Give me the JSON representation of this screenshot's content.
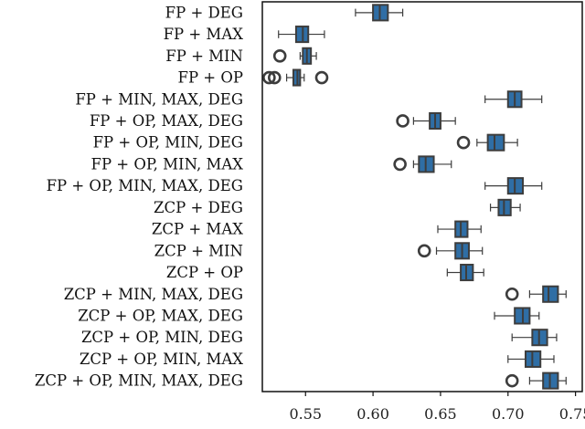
{
  "chart_data": {
    "type": "boxplot",
    "orientation": "horizontal",
    "title": "",
    "xlabel": "",
    "ylabel": "",
    "xlim": [
      0.518,
      0.755
    ],
    "xticks": [
      0.55,
      0.6,
      0.65,
      0.7,
      0.75
    ],
    "xtick_labels": [
      "0.55",
      "0.60",
      "0.65",
      "0.70",
      "0.75"
    ],
    "grid": false,
    "legend": "none",
    "box_color": "#2f6ea5",
    "edge_color": "#3d3d3d",
    "categories": [
      {
        "label": "FP + DEG",
        "whisker_low": 0.587,
        "q1": 0.6,
        "median": 0.605,
        "q3": 0.611,
        "whisker_high": 0.622,
        "outliers": []
      },
      {
        "label": "FP + MAX",
        "whisker_low": 0.53,
        "q1": 0.543,
        "median": 0.548,
        "q3": 0.552,
        "whisker_high": 0.564,
        "outliers": []
      },
      {
        "label": "FP + MIN",
        "whisker_low": 0.546,
        "q1": 0.548,
        "median": 0.551,
        "q3": 0.554,
        "whisker_high": 0.558,
        "outliers": [
          0.531
        ]
      },
      {
        "label": "FP + OP",
        "whisker_low": 0.536,
        "q1": 0.541,
        "median": 0.544,
        "q3": 0.546,
        "whisker_high": 0.549,
        "outliers": [
          0.523,
          0.527,
          0.562
        ]
      },
      {
        "label": "FP + MIN, MAX, DEG",
        "whisker_low": 0.683,
        "q1": 0.7,
        "median": 0.705,
        "q3": 0.71,
        "whisker_high": 0.725,
        "outliers": []
      },
      {
        "label": "FP + OP, MAX, DEG",
        "whisker_low": 0.63,
        "q1": 0.642,
        "median": 0.646,
        "q3": 0.65,
        "whisker_high": 0.661,
        "outliers": [
          0.622
        ]
      },
      {
        "label": "FP + OP, MIN, DEG",
        "whisker_low": 0.677,
        "q1": 0.685,
        "median": 0.69,
        "q3": 0.697,
        "whisker_high": 0.707,
        "outliers": [
          0.667
        ]
      },
      {
        "label": "FP + OP, MIN, MAX",
        "whisker_low": 0.63,
        "q1": 0.634,
        "median": 0.639,
        "q3": 0.645,
        "whisker_high": 0.658,
        "outliers": [
          0.62
        ]
      },
      {
        "label": "FP + OP, MIN, MAX, DEG",
        "whisker_low": 0.683,
        "q1": 0.7,
        "median": 0.705,
        "q3": 0.711,
        "whisker_high": 0.725,
        "outliers": []
      },
      {
        "label": "ZCP + DEG",
        "whisker_low": 0.687,
        "q1": 0.693,
        "median": 0.697,
        "q3": 0.702,
        "whisker_high": 0.709,
        "outliers": []
      },
      {
        "label": "ZCP + MAX",
        "whisker_low": 0.648,
        "q1": 0.661,
        "median": 0.665,
        "q3": 0.67,
        "whisker_high": 0.68,
        "outliers": []
      },
      {
        "label": "ZCP + MIN",
        "whisker_low": 0.647,
        "q1": 0.661,
        "median": 0.666,
        "q3": 0.671,
        "whisker_high": 0.681,
        "outliers": [
          0.638
        ]
      },
      {
        "label": "ZCP + OP",
        "whisker_low": 0.655,
        "q1": 0.665,
        "median": 0.669,
        "q3": 0.674,
        "whisker_high": 0.682,
        "outliers": []
      },
      {
        "label": "ZCP + MIN, MAX, DEG",
        "whisker_low": 0.716,
        "q1": 0.726,
        "median": 0.73,
        "q3": 0.737,
        "whisker_high": 0.743,
        "outliers": [
          0.703
        ]
      },
      {
        "label": "ZCP + OP, MAX, DEG",
        "whisker_low": 0.69,
        "q1": 0.705,
        "median": 0.711,
        "q3": 0.716,
        "whisker_high": 0.723,
        "outliers": []
      },
      {
        "label": "ZCP + OP, MIN, DEG",
        "whisker_low": 0.703,
        "q1": 0.718,
        "median": 0.723,
        "q3": 0.729,
        "whisker_high": 0.736,
        "outliers": []
      },
      {
        "label": "ZCP + OP, MIN, MAX",
        "whisker_low": 0.7,
        "q1": 0.713,
        "median": 0.718,
        "q3": 0.724,
        "whisker_high": 0.734,
        "outliers": []
      },
      {
        "label": "ZCP + OP, MIN, MAX, DEG",
        "whisker_low": 0.716,
        "q1": 0.726,
        "median": 0.731,
        "q3": 0.737,
        "whisker_high": 0.743,
        "outliers": [
          0.703
        ]
      }
    ]
  }
}
